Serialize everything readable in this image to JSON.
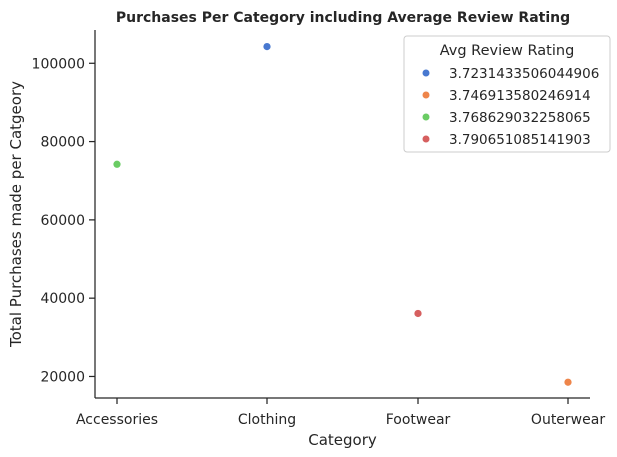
{
  "chart_data": {
    "type": "scatter",
    "title": "Purchases Per Category including Average Review Rating",
    "xlabel": "Category",
    "ylabel": "Total Purchases made per Catgeory",
    "categories": [
      "Accessories",
      "Clothing",
      "Footwear",
      "Outerwear"
    ],
    "ylim": [
      14500,
      108500
    ],
    "yticks": [
      "20000",
      "40000",
      "60000",
      "80000",
      "100000"
    ],
    "grid": false,
    "legend": {
      "title": "Avg Review Rating",
      "placement": "top-right"
    },
    "series": [
      {
        "name": "3.7231433506044906",
        "color": "#4878d0",
        "x": "Clothing",
        "y": 104264
      },
      {
        "name": "3.746913580246914",
        "color": "#ee854a",
        "x": "Outerwear",
        "y": 18524
      },
      {
        "name": "3.768629032258065",
        "color": "#6acc64",
        "x": "Accessories",
        "y": 74200
      },
      {
        "name": "3.790651085141903",
        "color": "#d65f5f",
        "x": "Footwear",
        "y": 36093
      }
    ]
  }
}
